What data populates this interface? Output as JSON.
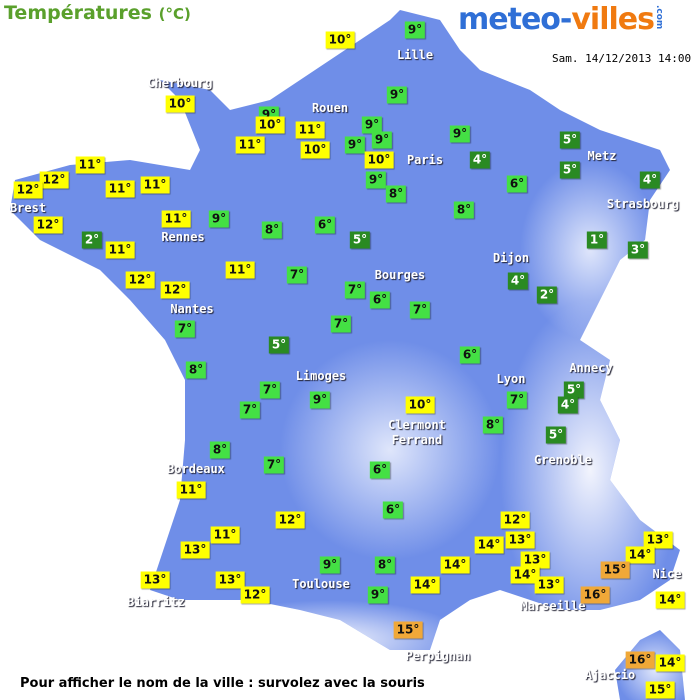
{
  "header": {
    "title": "Températures",
    "unit": "(°C)",
    "logo_main": "meteo-",
    "logo_accent": "villes",
    "logo_suffix": ".com",
    "date": "Sam. 14/12/2013 14:00"
  },
  "cities": [
    "Lille",
    "Cherbourg",
    "Rouen",
    "Paris",
    "Metz",
    "Strasbourg",
    "Brest",
    "Rennes",
    "Dijon",
    "Bourges",
    "Nantes",
    "Annecy",
    "Limoges",
    "Lyon",
    "Clermont Ferrand",
    "Grenoble",
    "Bordeaux",
    "Toulouse",
    "Nice",
    "Biarritz",
    "Marseille",
    "Perpignan",
    "Ajaccio"
  ],
  "temperatures": [
    "10°",
    "9°",
    "9°",
    "10°",
    "9°",
    "10°",
    "11°",
    "9°",
    "9°",
    "9°",
    "10°",
    "11°",
    "10°",
    "9°",
    "4°",
    "5°",
    "5°",
    "9°",
    "8°",
    "6°",
    "4°",
    "11°",
    "12°",
    "12°",
    "11°",
    "11°",
    "12°",
    "2°",
    "11°",
    "9°",
    "8°",
    "6°",
    "5°",
    "8°",
    "1°",
    "3°",
    "11°",
    "12°",
    "12°",
    "11°",
    "7°",
    "4°",
    "2°",
    "7°",
    "6°",
    "7°",
    "7°",
    "7°",
    "5°",
    "6°",
    "8°",
    "5°",
    "4°",
    "7°",
    "7°",
    "9°",
    "10°",
    "7°",
    "8°",
    "5°",
    "8°",
    "7°",
    "6°",
    "11°",
    "6°",
    "12°",
    "12°",
    "11°",
    "13°",
    "14°",
    "13°",
    "13°",
    "14°",
    "13°",
    "15°",
    "14°",
    "9°",
    "8°",
    "14°",
    "13°",
    "13°",
    "14°",
    "13°",
    "9°",
    "12°",
    "16°",
    "14°",
    "15°",
    "16°",
    "14°",
    "15°"
  ],
  "footer": "Pour afficher le nom de la ville : survolez avec la souris"
}
